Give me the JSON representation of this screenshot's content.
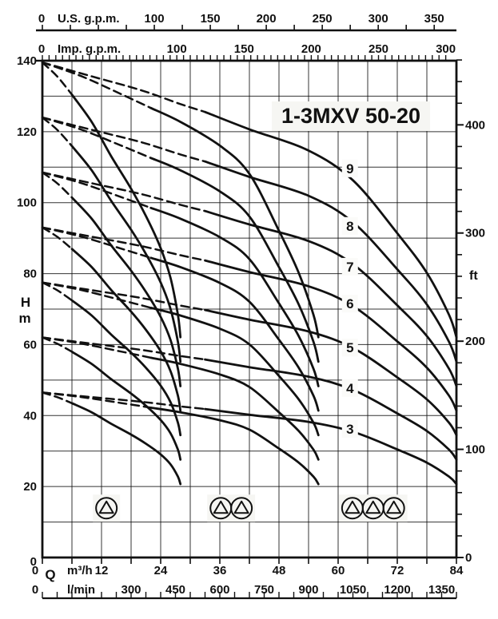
{
  "title": "1-3MXV 50-20",
  "chart_data": {
    "type": "line",
    "title": "1-3MXV 50-20",
    "x_axis_m3h": {
      "q_label": "Q",
      "unit_label": "m³/h",
      "min": 0,
      "max": 84,
      "labeled_ticks": [
        0,
        12,
        24,
        36,
        48,
        60,
        72,
        84
      ],
      "grid_step": 6
    },
    "x_axis_lmin": {
      "unit_label": "l/min",
      "labeled_ticks": [
        0,
        300,
        450,
        600,
        750,
        900,
        1050,
        1200,
        1350
      ],
      "tick_step": 50,
      "m3h_per_unit": 0.06
    },
    "x_axis_usgpm": {
      "unit_label": "U.S. g.p.m.",
      "labeled_ticks": [
        0,
        100,
        150,
        200,
        250,
        300,
        350
      ],
      "tick_step": 25,
      "tick_max": 350,
      "m3h_per_unit": 0.22712
    },
    "x_axis_impgpm": {
      "unit_label": "Imp. g.p.m.",
      "labeled_ticks": [
        0,
        100,
        150,
        200,
        250,
        300
      ],
      "tick_step": 5,
      "tick_max": 300,
      "m3h_per_unit": 0.27276
    },
    "y_axis_m": {
      "label": "H",
      "unit_label": "m",
      "min": 0,
      "max": 140,
      "labeled_ticks": [
        0,
        20,
        40,
        60,
        80,
        100,
        120,
        140
      ],
      "grid_step": 10
    },
    "y_axis_ft": {
      "unit_label": "ft",
      "labeled_ticks": [
        0,
        100,
        200,
        300,
        400
      ],
      "tick_step": 20,
      "tick_max": 460,
      "m_per_unit": 0.3048
    },
    "pumps": [
      {
        "label": "9",
        "shutoff_head_m": 139.5,
        "label_h_m": 108.3
      },
      {
        "label": "8",
        "shutoff_head_m": 124.0,
        "label_h_m": 92.1
      },
      {
        "label": "7",
        "shutoff_head_m": 108.5,
        "label_h_m": 80.6
      },
      {
        "label": "6",
        "shutoff_head_m": 93.0,
        "label_h_m": 70.2
      },
      {
        "label": "5",
        "shutoff_head_m": 77.5,
        "label_h_m": 57.8
      },
      {
        "label": "4",
        "shutoff_head_m": 62.0,
        "label_h_m": 46.4
      },
      {
        "label": "3",
        "shutoff_head_m": 46.5,
        "label_h_m": 34.9
      }
    ],
    "curve_label_q": 62.4,
    "curve_shapes": {
      "dash_1p": [
        [
          0,
          1
        ],
        [
          3,
          0.972
        ],
        [
          6,
          0.935
        ]
      ],
      "solid_1p": [
        [
          6,
          0.935
        ],
        [
          10,
          0.88
        ],
        [
          14,
          0.81
        ],
        [
          18,
          0.745
        ],
        [
          21,
          0.69
        ],
        [
          24,
          0.625
        ],
        [
          26,
          0.565
        ],
        [
          27.5,
          0.49
        ],
        [
          28,
          0.445
        ]
      ],
      "dash_2p": [
        [
          0,
          1
        ],
        [
          8,
          0.972
        ],
        [
          16,
          0.936
        ],
        [
          22,
          0.908
        ]
      ],
      "solid_2p": [
        [
          22,
          0.908
        ],
        [
          28,
          0.88
        ],
        [
          36,
          0.832
        ],
        [
          42,
          0.775
        ],
        [
          48,
          0.66
        ],
        [
          52,
          0.575
        ],
        [
          55,
          0.49
        ],
        [
          56,
          0.445
        ]
      ],
      "dash_3p": [
        [
          0,
          1
        ],
        [
          10,
          0.972
        ],
        [
          20,
          0.944
        ],
        [
          28,
          0.916
        ],
        [
          33,
          0.9
        ]
      ],
      "solid_3p": [
        [
          33,
          0.9
        ],
        [
          42,
          0.865
        ],
        [
          54,
          0.822
        ],
        [
          63,
          0.762
        ],
        [
          72,
          0.655
        ],
        [
          78,
          0.575
        ],
        [
          82.5,
          0.49
        ],
        [
          84,
          0.445
        ]
      ]
    },
    "pump_set_icons": [
      {
        "pumps": 1,
        "q_positions": [
          13.0
        ]
      },
      {
        "pumps": 2,
        "q_positions": [
          36.2,
          40.4
        ]
      },
      {
        "pumps": 3,
        "q_positions": [
          62.9,
          67.1,
          71.3
        ]
      }
    ],
    "icon_h_m": 13.9
  }
}
